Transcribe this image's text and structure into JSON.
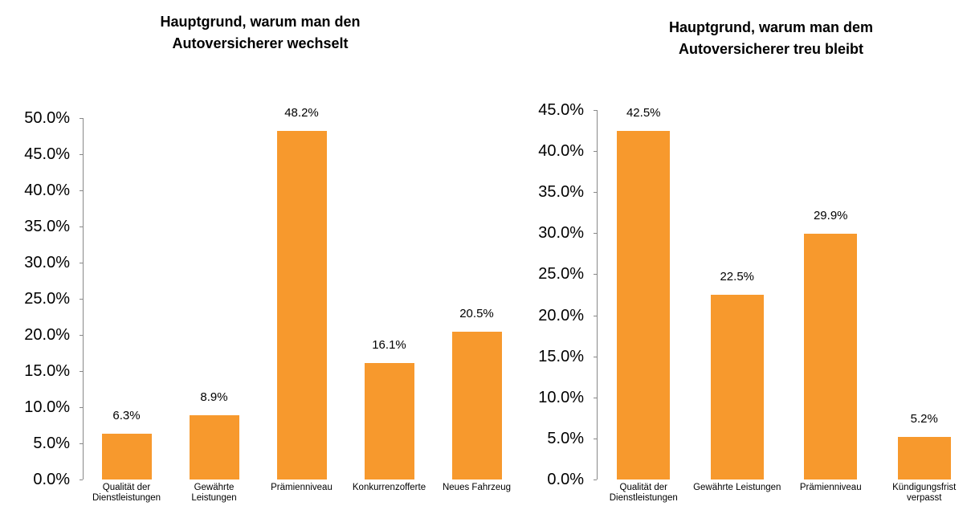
{
  "chart_data": [
    {
      "type": "bar",
      "title": "Hauptgrund, warum man den Autoversicherer wechselt",
      "categories": [
        "Qualität der Dienstleistungen",
        "Gewährte Leistungen",
        "Prämienniveau",
        "Konkurrenzofferte",
        "Neues Fahrzeug"
      ],
      "values": [
        6.3,
        8.9,
        48.2,
        16.1,
        20.5
      ],
      "value_labels": [
        "6.3%",
        "8.9%",
        "48.2%",
        "16.1%",
        "20.5%"
      ],
      "color": "#f7992d",
      "ylim": [
        0,
        50
      ],
      "yticks": [
        {
          "value": 0,
          "label": "0.0%"
        },
        {
          "value": 5,
          "label": "5.0%"
        },
        {
          "value": 10,
          "label": "10.0%"
        },
        {
          "value": 15,
          "label": "15.0%"
        },
        {
          "value": 20,
          "label": "20.0%"
        },
        {
          "value": 25,
          "label": "25.0%"
        },
        {
          "value": 30,
          "label": "30.0%"
        },
        {
          "value": 35,
          "label": "35.0%"
        },
        {
          "value": 40,
          "label": "40.0%"
        },
        {
          "value": 45,
          "label": "45.0%"
        },
        {
          "value": 50,
          "label": "50.0%"
        }
      ]
    },
    {
      "type": "bar",
      "title": "Hauptgrund, warum man dem Autoversicherer treu bleibt",
      "categories": [
        "Qualität der Dienstleistungen",
        "Gewährte Leistungen",
        "Prämienniveau",
        "Kündigungsfrist verpasst"
      ],
      "values": [
        42.5,
        22.5,
        29.9,
        5.2
      ],
      "value_labels": [
        "42.5%",
        "22.5%",
        "29.9%",
        "5.2%"
      ],
      "color": "#f7992d",
      "ylim": [
        0,
        45
      ],
      "yticks": [
        {
          "value": 0,
          "label": "0.0%"
        },
        {
          "value": 5,
          "label": "5.0%"
        },
        {
          "value": 10,
          "label": "10.0%"
        },
        {
          "value": 15,
          "label": "15.0%"
        },
        {
          "value": 20,
          "label": "20.0%"
        },
        {
          "value": 25,
          "label": "25.0%"
        },
        {
          "value": 30,
          "label": "30.0%"
        },
        {
          "value": 35,
          "label": "35.0%"
        },
        {
          "value": 40,
          "label": "40.0%"
        },
        {
          "value": 45,
          "label": "45.0%"
        }
      ]
    }
  ]
}
